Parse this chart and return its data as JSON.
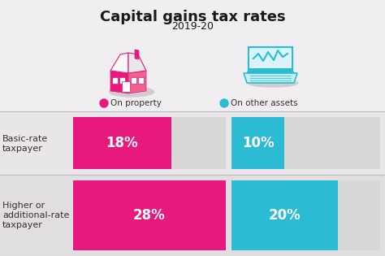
{
  "title": "Capital gains tax rates",
  "subtitle": "2019-20",
  "background_color": "#f0eef0",
  "pink_color": "#e8197d",
  "cyan_color": "#2bbcd4",
  "bar_bg_color": "#d8d8d8",
  "row0_bg": "#e8e6e8",
  "row1_bg": "#e0dee0",
  "rows": [
    {
      "label_line1": "Basic-rate",
      "label_line2": "taxpayer",
      "property_pct": 18,
      "property_label": "18%",
      "assets_pct": 10,
      "assets_label": "10%"
    },
    {
      "label_line1": "Higher or",
      "label_line2": "additional-rate",
      "label_line3": "taxpayer",
      "property_pct": 28,
      "property_label": "28%",
      "assets_pct": 20,
      "assets_label": "20%"
    }
  ],
  "legend_property": "On property",
  "legend_assets": "On other assets",
  "max_pct": 28,
  "text_color": "#3a3030",
  "white": "#ffffff",
  "separator_color": "#bbbbbb",
  "bar_label_fontsize": 12,
  "row_label_fontsize": 8
}
